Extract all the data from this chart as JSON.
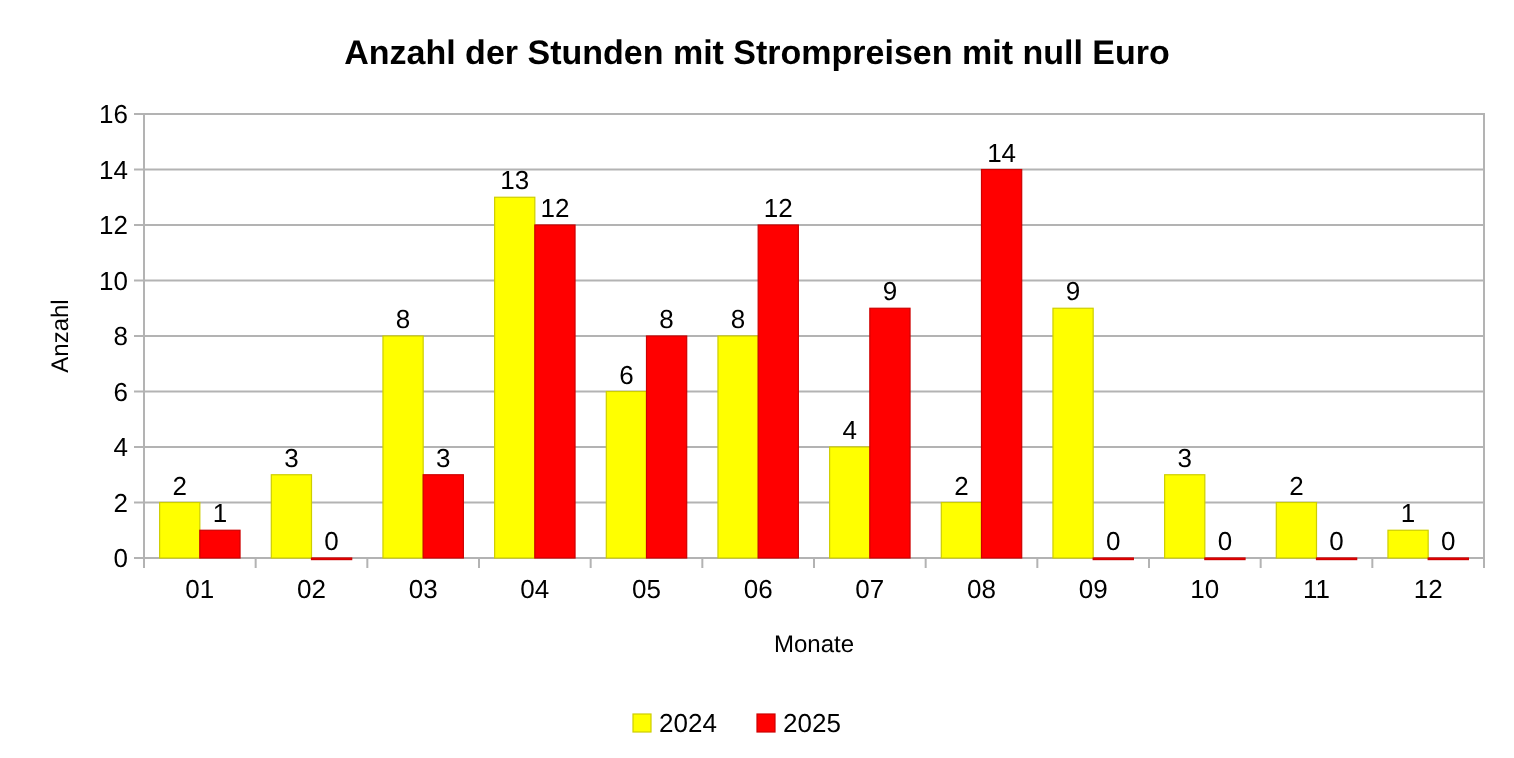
{
  "chart_data": {
    "type": "bar",
    "title": "Anzahl der Stunden mit Strompreisen mit null Euro",
    "xlabel": "Monate",
    "ylabel": "Anzahl",
    "categories": [
      "01",
      "02",
      "03",
      "04",
      "05",
      "06",
      "07",
      "08",
      "09",
      "10",
      "11",
      "12"
    ],
    "series": [
      {
        "name": "2024",
        "color": "#ffff00",
        "values": [
          2,
          3,
          8,
          13,
          6,
          8,
          4,
          2,
          9,
          3,
          2,
          1
        ]
      },
      {
        "name": "2025",
        "color": "#ff0000",
        "values": [
          1,
          0,
          3,
          12,
          8,
          12,
          9,
          14,
          0,
          0,
          0,
          0
        ]
      }
    ],
    "ylim": [
      0,
      16
    ],
    "yticks": [
      0,
      2,
      4,
      6,
      8,
      10,
      12,
      14,
      16
    ],
    "grid": "y",
    "legend": "bottom",
    "data_labels": true
  }
}
